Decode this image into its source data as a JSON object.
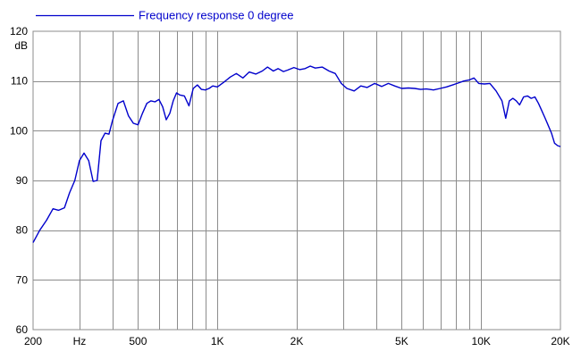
{
  "chart_data": {
    "type": "line",
    "title": "",
    "xlabel": "",
    "ylabel": "dB",
    "x_scale": "log",
    "xlim": [
      200,
      20000
    ],
    "ylim": [
      60,
      120
    ],
    "grid": true,
    "legend_position": "top-left",
    "x_ticks": [
      {
        "value": 200,
        "label": "200"
      },
      {
        "value": 300,
        "label": "Hz"
      },
      {
        "value": 500,
        "label": "500"
      },
      {
        "value": 1000,
        "label": "1K"
      },
      {
        "value": 2000,
        "label": "2K"
      },
      {
        "value": 5000,
        "label": "5K"
      },
      {
        "value": 10000,
        "label": "10K"
      },
      {
        "value": 20000,
        "label": "20K"
      }
    ],
    "x_gridlines": [
      300,
      400,
      500,
      600,
      700,
      800,
      900,
      1000,
      2000,
      3000,
      4000,
      5000,
      6000,
      7000,
      8000,
      9000,
      10000
    ],
    "y_ticks": [
      60,
      70,
      80,
      90,
      100,
      110,
      120
    ],
    "series": [
      {
        "name": "Frequency response 0 degree",
        "color": "#0000cc",
        "x": [
          200,
          212,
          225,
          238,
          250,
          263,
          275,
          288,
          300,
          312,
          325,
          338,
          350,
          362,
          375,
          388,
          400,
          420,
          440,
          460,
          480,
          500,
          520,
          540,
          560,
          580,
          600,
          620,
          640,
          660,
          680,
          700,
          720,
          750,
          780,
          810,
          840,
          870,
          900,
          930,
          960,
          1000,
          1060,
          1120,
          1180,
          1250,
          1320,
          1400,
          1480,
          1550,
          1630,
          1700,
          1780,
          1850,
          1950,
          2050,
          2150,
          2250,
          2350,
          2500,
          2650,
          2800,
          2950,
          3100,
          3300,
          3500,
          3700,
          3950,
          4200,
          4450,
          4700,
          5000,
          5300,
          5600,
          5900,
          6200,
          6600,
          7000,
          7400,
          7800,
          8200,
          8600,
          9000,
          9400,
          9800,
          10300,
          10800,
          11400,
          12000,
          12400,
          12800,
          13200,
          13600,
          14000,
          14500,
          15000,
          15500,
          16000,
          16500,
          17000,
          17500,
          18000,
          18500,
          19000,
          19500,
          20000
        ],
        "y": [
          77.5,
          80.0,
          82.0,
          84.3,
          84.0,
          84.5,
          87.5,
          90.0,
          94.0,
          95.5,
          94.0,
          89.8,
          90.0,
          98.0,
          99.5,
          99.3,
          102.0,
          105.5,
          106.0,
          103.0,
          101.5,
          101.2,
          103.5,
          105.5,
          106.0,
          105.8,
          106.3,
          104.8,
          102.2,
          103.5,
          106.0,
          107.6,
          107.2,
          107.0,
          105.0,
          108.5,
          109.2,
          108.3,
          108.2,
          108.5,
          109.0,
          108.8,
          109.8,
          110.8,
          111.5,
          110.6,
          111.8,
          111.4,
          112.0,
          112.8,
          112.0,
          112.5,
          111.9,
          112.2,
          112.7,
          112.3,
          112.5,
          113.0,
          112.6,
          112.8,
          112.0,
          111.5,
          109.5,
          108.5,
          108.0,
          109.0,
          108.7,
          109.5,
          108.9,
          109.5,
          109.0,
          108.5,
          108.6,
          108.5,
          108.3,
          108.4,
          108.2,
          108.5,
          108.8,
          109.2,
          109.6,
          110.0,
          110.2,
          110.6,
          109.5,
          109.4,
          109.5,
          108.0,
          106.0,
          102.5,
          106.0,
          106.5,
          106.0,
          105.2,
          106.8,
          107.0,
          106.5,
          106.8,
          105.5,
          104.0,
          102.5,
          101.0,
          99.5,
          97.5,
          97.0,
          96.8
        ]
      }
    ]
  }
}
